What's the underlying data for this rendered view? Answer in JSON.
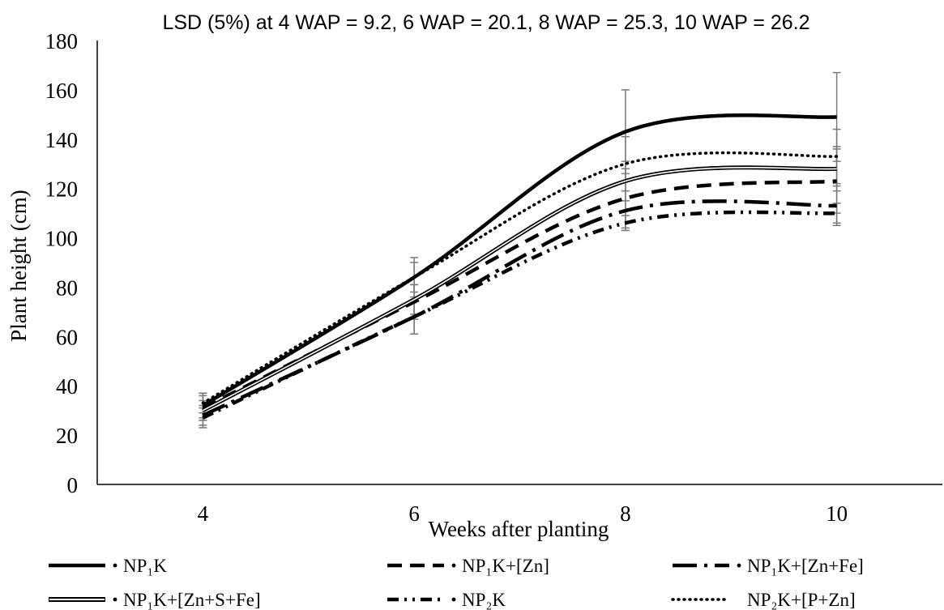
{
  "chart_data": {
    "type": "line",
    "title": "LSD (5%)  at 4 WAP = 9.2, 6 WAP = 20.1, 8 WAP = 25.3, 10 WAP = 26.2",
    "xlabel": "Weeks after planting",
    "ylabel": "Plant height (cm)",
    "x": [
      4,
      6,
      8,
      10
    ],
    "xlim": [
      3,
      11
    ],
    "ylim": [
      0,
      180
    ],
    "yticks": [
      0,
      20,
      40,
      60,
      80,
      100,
      120,
      140,
      160,
      180
    ],
    "xticks": [
      4,
      6,
      8,
      10
    ],
    "grid": false,
    "legend_position": "bottom",
    "series": [
      {
        "name": "NP₁K",
        "values": [
          32,
          84,
          143,
          149
        ],
        "errors": [
          5,
          8,
          17,
          18
        ],
        "color": "#000000",
        "style": "solid"
      },
      {
        "name": "NP₁K+[Zn]",
        "values": [
          31,
          74,
          116,
          123
        ],
        "errors": [
          5,
          7,
          12,
          13
        ],
        "color": "#000000",
        "style": "dash"
      },
      {
        "name": "NP₁K+[Zn+Fe]",
        "values": [
          28,
          68,
          111,
          113
        ],
        "errors": [
          4,
          7,
          8,
          8
        ],
        "color": "#000000",
        "style": "longdashdot"
      },
      {
        "name": "NP₁K+[Zn+S+Fe]",
        "values": [
          30,
          75,
          123,
          128
        ],
        "errors": [
          4,
          6,
          8,
          9
        ],
        "color": "#000000",
        "style": "double"
      },
      {
        "name": "NP₂K",
        "values": [
          27,
          68,
          106,
          110
        ],
        "errors": [
          4,
          7,
          3,
          4
        ],
        "color": "#000000",
        "style": "dashdotdot"
      },
      {
        "name": "NP₂K+[P+Zn]",
        "values": [
          33,
          84,
          130,
          133
        ],
        "errors": [
          4,
          6,
          11,
          11
        ],
        "color": "#000000",
        "style": "dot"
      }
    ]
  }
}
